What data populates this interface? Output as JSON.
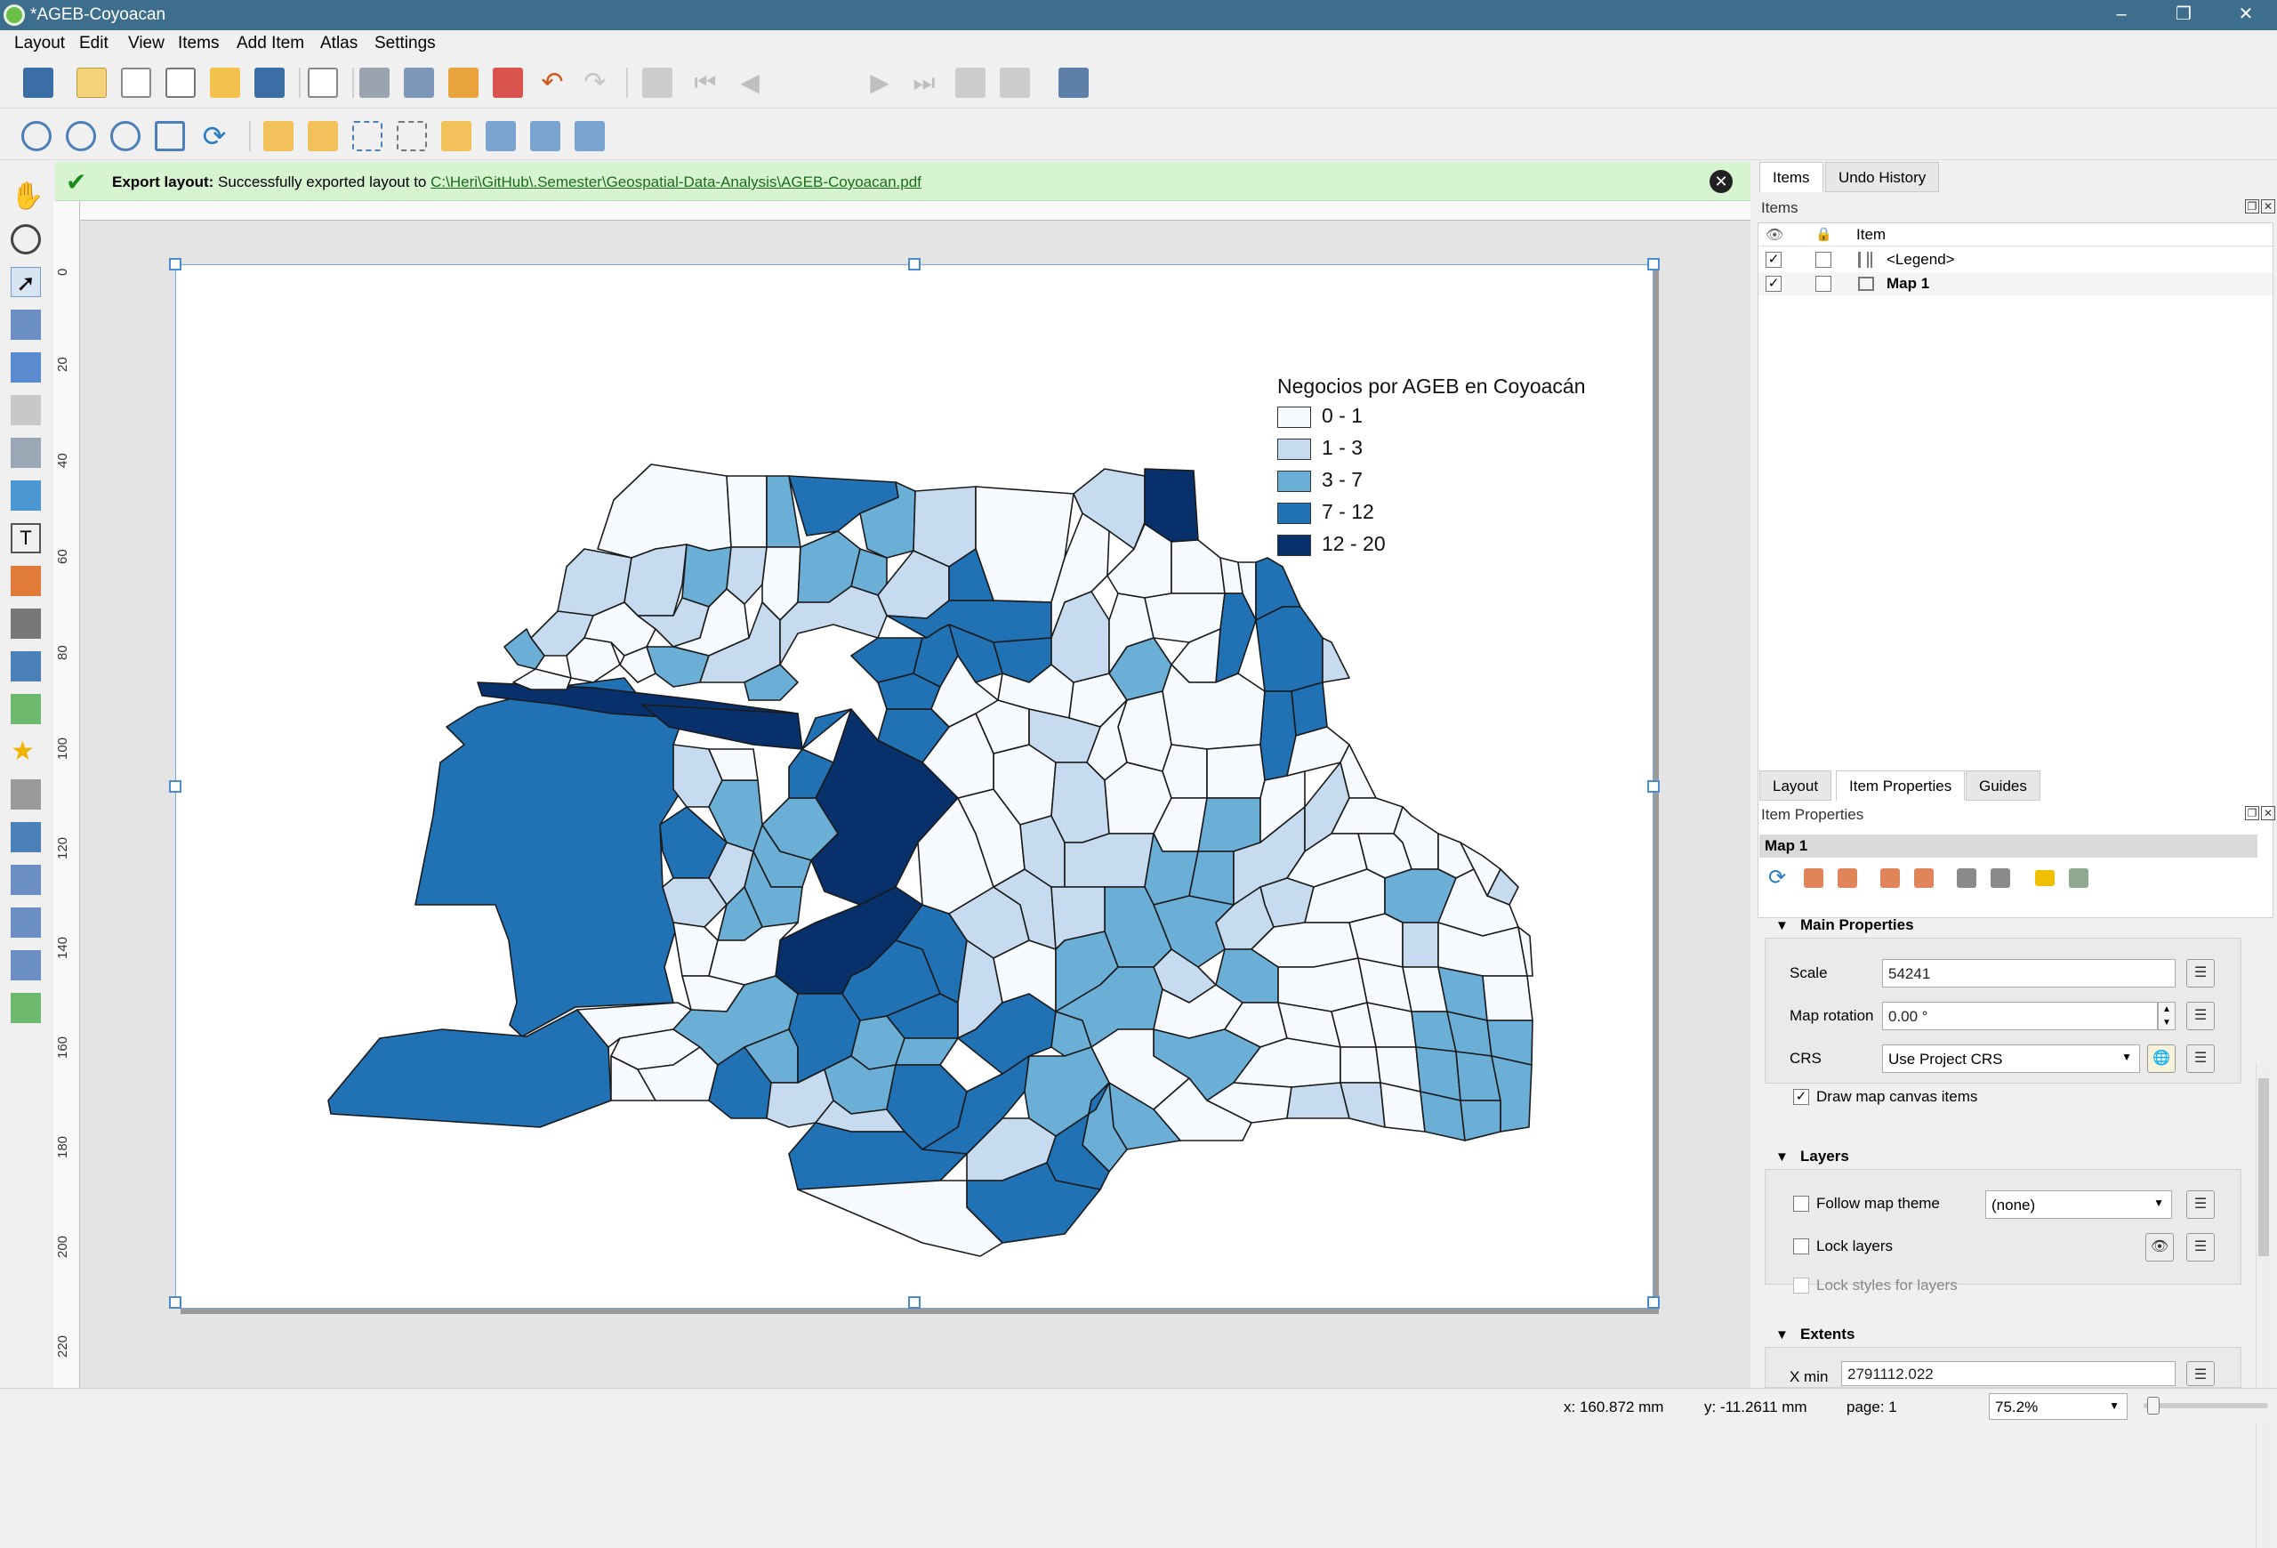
{
  "window": {
    "title": "*AGEB-Coyoacan"
  },
  "menu": [
    "Layout",
    "Edit",
    "View",
    "Items",
    "Add Item",
    "Atlas",
    "Settings"
  ],
  "toolbar": {
    "page_value": "1"
  },
  "message": {
    "label": "Export layout:",
    "text": "Successfully exported layout to",
    "link": "C:\\Heri\\GitHub\\.Semester\\Geospatial-Data-Analysis\\AGEB-Coyoacan.pdf"
  },
  "ruler": {
    "left_labels": [
      "0",
      "20",
      "40",
      "60",
      "80",
      "100",
      "120",
      "140",
      "160",
      "180",
      "200",
      "220"
    ]
  },
  "legend": {
    "title": "Negocios por AGEB en Coyoacán",
    "classes": [
      {
        "label": "0 - 1",
        "color": "#f7fbff"
      },
      {
        "label": "1 - 3",
        "color": "#c6dbef"
      },
      {
        "label": "3 - 7",
        "color": "#6baed6"
      },
      {
        "label": "7 - 12",
        "color": "#2171b5"
      },
      {
        "label": "12 - 20",
        "color": "#08306b"
      }
    ]
  },
  "dock": {
    "tabs": [
      "Items",
      "Undo History"
    ],
    "items_panel_title": "Items",
    "column_item": "Item",
    "items": [
      {
        "name": "<Legend>",
        "visible": true,
        "locked": false
      },
      {
        "name": "Map 1",
        "visible": true,
        "locked": false
      }
    ],
    "lower_tabs": [
      "Layout",
      "Item Properties",
      "Guides"
    ],
    "props_panel_title": "Item Properties",
    "item_title": "Map 1",
    "main_properties": {
      "heading": "Main Properties",
      "scale_label": "Scale",
      "scale_value": "54241",
      "rotation_label": "Map rotation",
      "rotation_value": "0.00 °",
      "crs_label": "CRS",
      "crs_value": "Use Project CRS",
      "draw_items_label": "Draw map canvas items",
      "draw_items_checked": true
    },
    "layers": {
      "heading": "Layers",
      "follow_theme_label": "Follow map theme",
      "theme_value": "(none)",
      "lock_layers_label": "Lock layers",
      "lock_styles_label": "Lock styles for layers"
    },
    "extents": {
      "heading": "Extents",
      "xmin_label": "X min",
      "xmin_value": "2791112.022"
    }
  },
  "status": {
    "x": "x: 160.872 mm",
    "y": "y: -11.2611 mm",
    "page": "page: 1",
    "zoom": "75.2%"
  },
  "colors": {
    "titlebar": "#3e6e8e",
    "message_bg": "#d7f4d1",
    "selection": "#4b8bd1"
  }
}
